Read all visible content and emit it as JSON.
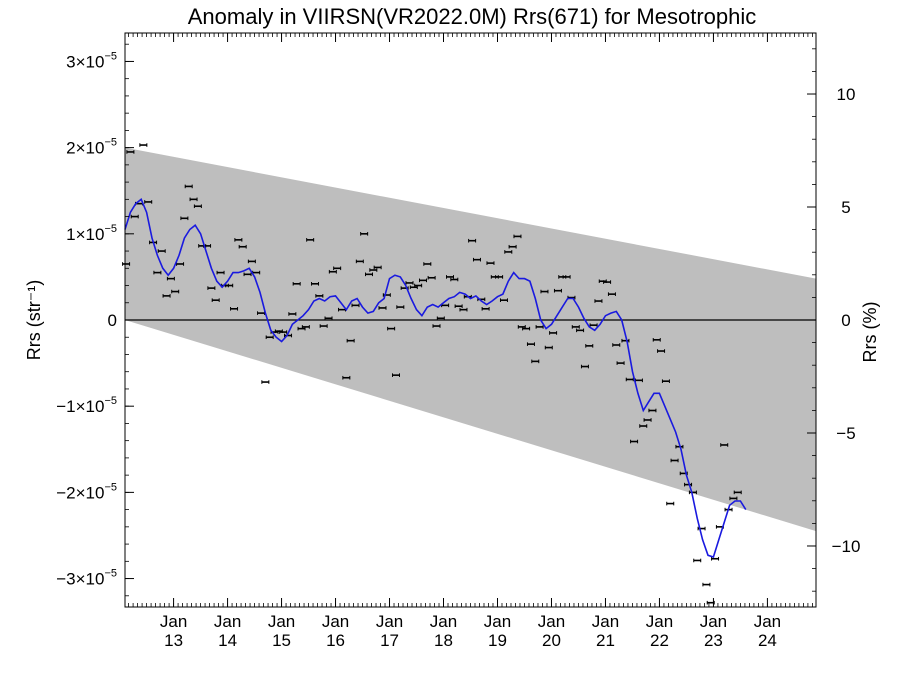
{
  "chart_data": {
    "type": "scatter",
    "title": "Anomaly in VIIRSN(VR2022.0M) Rrs(671) for Mesotrophic",
    "ylabel_left": "Rrs (str⁻¹)",
    "ylabel_right": "Rrs (%)",
    "xlim": [
      2012.1,
      2024.9
    ],
    "ylim": [
      -3.33e-05,
      3.33e-05
    ],
    "ylim_right": [
      -12.7,
      12.7
    ],
    "left_ticks": [
      {
        "value": 3e-05,
        "mant": "3",
        "exp": "−5"
      },
      {
        "value": 2e-05,
        "mant": "2",
        "exp": "−5"
      },
      {
        "value": 1e-05,
        "mant": "1",
        "exp": "−5"
      },
      {
        "value": 0,
        "plain": "0"
      },
      {
        "value": -1e-05,
        "mant": "−1",
        "exp": "−5"
      },
      {
        "value": -2e-05,
        "mant": "−2",
        "exp": "−5"
      },
      {
        "value": -3e-05,
        "mant": "−3",
        "exp": "−5"
      }
    ],
    "right_ticks": [
      {
        "value": 10,
        "label": "10"
      },
      {
        "value": 5,
        "label": "5"
      },
      {
        "value": 0,
        "label": "0"
      },
      {
        "value": -5,
        "label": "−5"
      },
      {
        "value": -10,
        "label": "−10"
      }
    ],
    "x_ticks": [
      {
        "value": 2013,
        "month": "Jan",
        "year": "13"
      },
      {
        "value": 2014,
        "month": "Jan",
        "year": "14"
      },
      {
        "value": 2015,
        "month": "Jan",
        "year": "15"
      },
      {
        "value": 2016,
        "month": "Jan",
        "year": "16"
      },
      {
        "value": 2017,
        "month": "Jan",
        "year": "17"
      },
      {
        "value": 2018,
        "month": "Jan",
        "year": "18"
      },
      {
        "value": 2019,
        "month": "Jan",
        "year": "19"
      },
      {
        "value": 2020,
        "month": "Jan",
        "year": "20"
      },
      {
        "value": 2021,
        "month": "Jan",
        "year": "21"
      },
      {
        "value": 2022,
        "month": "Jan",
        "year": "22"
      },
      {
        "value": 2023,
        "month": "Jan",
        "year": "23"
      },
      {
        "value": 2024,
        "month": "Jan",
        "year": "24"
      }
    ],
    "band": {
      "upper": [
        [
          2012.1,
          2e-05
        ],
        [
          2024.9,
          4.8e-06
        ]
      ],
      "lower": [
        [
          2012.1,
          0.0
        ],
        [
          2024.9,
          -2.45e-05
        ]
      ],
      "color": "#bebebe"
    },
    "zero_line": 0,
    "points": [
      [
        2012.12,
        6.5e-06
      ],
      [
        2012.2,
        1.95e-05
      ],
      [
        2012.28,
        1.2e-05
      ],
      [
        2012.36,
        1.35e-05
      ],
      [
        2012.44,
        2.03e-05
      ],
      [
        2012.53,
        1.37e-05
      ],
      [
        2012.62,
        9e-06
      ],
      [
        2012.7,
        5.5e-06
      ],
      [
        2012.78,
        8e-06
      ],
      [
        2012.87,
        2.8e-06
      ],
      [
        2012.95,
        4.8e-06
      ],
      [
        2013.03,
        3.3e-06
      ],
      [
        2013.12,
        6.5e-06
      ],
      [
        2013.2,
        1.18e-05
      ],
      [
        2013.28,
        1.55e-05
      ],
      [
        2013.37,
        1.4e-05
      ],
      [
        2013.45,
        1.32e-05
      ],
      [
        2013.53,
        8.6e-06
      ],
      [
        2013.62,
        8.6e-06
      ],
      [
        2013.7,
        3.7e-06
      ],
      [
        2013.78,
        2.3e-06
      ],
      [
        2013.87,
        5.5e-06
      ],
      [
        2013.95,
        4e-06
      ],
      [
        2014.03,
        4e-06
      ],
      [
        2014.12,
        1.3e-06
      ],
      [
        2014.2,
        9.3e-06
      ],
      [
        2014.28,
        8.5e-06
      ],
      [
        2014.37,
        5.3e-06
      ],
      [
        2014.45,
        6.8e-06
      ],
      [
        2014.53,
        5.5e-06
      ],
      [
        2014.62,
        8e-07
      ],
      [
        2014.7,
        -7.2e-06
      ],
      [
        2014.78,
        -2e-06
      ],
      [
        2014.87,
        -1.4e-06
      ],
      [
        2014.95,
        -1.3e-06
      ],
      [
        2015.03,
        -1.4e-06
      ],
      [
        2015.12,
        -1.8e-06
      ],
      [
        2015.2,
        7e-07
      ],
      [
        2015.28,
        4.2e-06
      ],
      [
        2015.37,
        -1e-06
      ],
      [
        2015.45,
        -8e-07
      ],
      [
        2015.53,
        9.3e-06
      ],
      [
        2015.62,
        4.2e-06
      ],
      [
        2015.7,
        2.8e-06
      ],
      [
        2015.78,
        -7e-07
      ],
      [
        2015.87,
        2e-07
      ],
      [
        2015.95,
        5.6e-06
      ],
      [
        2016.03,
        6e-06
      ],
      [
        2016.12,
        1.2e-06
      ],
      [
        2016.2,
        -6.7e-06
      ],
      [
        2016.28,
        -2.4e-06
      ],
      [
        2016.37,
        1.7e-06
      ],
      [
        2016.45,
        6.8e-06
      ],
      [
        2016.53,
        1e-05
      ],
      [
        2016.62,
        5.3e-06
      ],
      [
        2016.7,
        5.8e-06
      ],
      [
        2016.78,
        6.1e-06
      ],
      [
        2016.87,
        1.4e-06
      ],
      [
        2016.95,
        2.9e-06
      ],
      [
        2017.03,
        -1e-06
      ],
      [
        2017.12,
        -6.4e-06
      ],
      [
        2017.2,
        1.5e-06
      ],
      [
        2017.28,
        3.7e-06
      ],
      [
        2017.37,
        4.3e-06
      ],
      [
        2017.45,
        3.8e-06
      ],
      [
        2017.53,
        4e-06
      ],
      [
        2017.62,
        4.6e-06
      ],
      [
        2017.7,
        6.5e-06
      ],
      [
        2017.78,
        4.9e-06
      ],
      [
        2017.87,
        -7e-07
      ],
      [
        2017.95,
        2e-07
      ],
      [
        2018.03,
        1.7e-06
      ],
      [
        2018.12,
        5e-06
      ],
      [
        2018.2,
        4.7e-06
      ],
      [
        2018.28,
        1.6e-06
      ],
      [
        2018.37,
        1.2e-06
      ],
      [
        2018.45,
        2.7e-06
      ],
      [
        2018.53,
        9.2e-06
      ],
      [
        2018.62,
        7e-06
      ],
      [
        2018.7,
        2.4e-06
      ],
      [
        2018.78,
        1.3e-06
      ],
      [
        2018.87,
        6.6e-06
      ],
      [
        2018.95,
        5e-06
      ],
      [
        2019.03,
        5e-06
      ],
      [
        2019.12,
        2.3e-06
      ],
      [
        2019.2,
        7.9e-06
      ],
      [
        2019.28,
        8.5e-06
      ],
      [
        2019.37,
        9.7e-06
      ],
      [
        2019.45,
        -8e-07
      ],
      [
        2019.53,
        -1e-06
      ],
      [
        2019.62,
        -2.8e-06
      ],
      [
        2019.7,
        -4.8e-06
      ],
      [
        2019.78,
        -8e-07
      ],
      [
        2019.87,
        3.3e-06
      ],
      [
        2019.95,
        -3.2e-06
      ],
      [
        2020.03,
        -1.5e-06
      ],
      [
        2020.12,
        3.4e-06
      ],
      [
        2020.2,
        5e-06
      ],
      [
        2020.28,
        5e-06
      ],
      [
        2020.37,
        2.6e-06
      ],
      [
        2020.45,
        -8e-07
      ],
      [
        2020.53,
        -1.2e-06
      ],
      [
        2020.62,
        -5.4e-06
      ],
      [
        2020.7,
        -3e-06
      ],
      [
        2020.78,
        -6e-07
      ],
      [
        2020.87,
        2.2e-06
      ],
      [
        2020.95,
        4.5e-06
      ],
      [
        2021.03,
        4.4e-06
      ],
      [
        2021.12,
        3e-06
      ],
      [
        2021.2,
        -2.9e-06
      ],
      [
        2021.28,
        -5e-06
      ],
      [
        2021.37,
        -2.4e-06
      ],
      [
        2021.45,
        -6.9e-06
      ],
      [
        2021.53,
        -1.41e-05
      ],
      [
        2021.62,
        -7e-06
      ],
      [
        2021.7,
        -1.23e-05
      ],
      [
        2021.78,
        -1.16e-05
      ],
      [
        2021.87,
        -1.05e-05
      ],
      [
        2021.95,
        -2.3e-06
      ],
      [
        2022.03,
        -3.6e-06
      ],
      [
        2022.12,
        -7.1e-06
      ],
      [
        2022.2,
        -2.13e-05
      ],
      [
        2022.28,
        -1.63e-05
      ],
      [
        2022.37,
        -1.47e-05
      ],
      [
        2022.45,
        -1.78e-05
      ],
      [
        2022.53,
        -1.91e-05
      ],
      [
        2022.62,
        -2e-05
      ],
      [
        2022.7,
        -2.79e-05
      ],
      [
        2022.78,
        -2.42e-05
      ],
      [
        2022.87,
        -3.07e-05
      ],
      [
        2022.95,
        -3.28e-05
      ],
      [
        2023.03,
        -2.77e-05
      ],
      [
        2023.12,
        -2.4e-05
      ],
      [
        2023.2,
        -1.45e-05
      ],
      [
        2023.28,
        -2.2e-05
      ],
      [
        2023.37,
        -2.07e-05
      ],
      [
        2023.45,
        -2e-05
      ]
    ],
    "smooth": [
      [
        2012.1,
        1.05e-05
      ],
      [
        2012.2,
        1.25e-05
      ],
      [
        2012.3,
        1.35e-05
      ],
      [
        2012.4,
        1.4e-05
      ],
      [
        2012.5,
        1.25e-05
      ],
      [
        2012.6,
        9.5e-06
      ],
      [
        2012.7,
        7.5e-06
      ],
      [
        2012.8,
        6e-06
      ],
      [
        2012.9,
        5.2e-06
      ],
      [
        2013.0,
        6e-06
      ],
      [
        2013.1,
        7.5e-06
      ],
      [
        2013.2,
        9.5e-06
      ],
      [
        2013.3,
        1.05e-05
      ],
      [
        2013.4,
        1.1e-05
      ],
      [
        2013.5,
        1e-05
      ],
      [
        2013.6,
        8e-06
      ],
      [
        2013.7,
        6e-06
      ],
      [
        2013.8,
        4.5e-06
      ],
      [
        2013.9,
        3.8e-06
      ],
      [
        2014.0,
        4.5e-06
      ],
      [
        2014.1,
        5.5e-06
      ],
      [
        2014.2,
        5.5e-06
      ],
      [
        2014.3,
        5.7e-06
      ],
      [
        2014.4,
        6e-06
      ],
      [
        2014.5,
        5e-06
      ],
      [
        2014.6,
        3.2e-06
      ],
      [
        2014.7,
        8e-07
      ],
      [
        2014.8,
        -1.2e-06
      ],
      [
        2014.9,
        -2e-06
      ],
      [
        2015.0,
        -2.5e-06
      ],
      [
        2015.1,
        -1.8e-06
      ],
      [
        2015.2,
        -5e-07
      ],
      [
        2015.3,
        0.0
      ],
      [
        2015.4,
        5e-07
      ],
      [
        2015.5,
        1.2e-06
      ],
      [
        2015.6,
        2.2e-06
      ],
      [
        2015.7,
        2.5e-06
      ],
      [
        2015.8,
        2.2e-06
      ],
      [
        2015.9,
        2.7e-06
      ],
      [
        2016.0,
        2.8e-06
      ],
      [
        2016.1,
        2e-06
      ],
      [
        2016.2,
        1.2e-06
      ],
      [
        2016.3,
        2.2e-06
      ],
      [
        2016.4,
        2.5e-06
      ],
      [
        2016.5,
        1.5e-06
      ],
      [
        2016.6,
        8e-07
      ],
      [
        2016.7,
        1e-06
      ],
      [
        2016.8,
        2e-06
      ],
      [
        2016.9,
        2.5e-06
      ],
      [
        2017.0,
        4.8e-06
      ],
      [
        2017.1,
        5.2e-06
      ],
      [
        2017.2,
        5e-06
      ],
      [
        2017.3,
        4e-06
      ],
      [
        2017.4,
        2.5e-06
      ],
      [
        2017.5,
        1.2e-06
      ],
      [
        2017.6,
        5e-07
      ],
      [
        2017.7,
        1.5e-06
      ],
      [
        2017.8,
        1.8e-06
      ],
      [
        2017.9,
        1.5e-06
      ],
      [
        2018.0,
        2e-06
      ],
      [
        2018.1,
        2.5e-06
      ],
      [
        2018.2,
        2.7e-06
      ],
      [
        2018.3,
        3.2e-06
      ],
      [
        2018.4,
        3e-06
      ],
      [
        2018.5,
        2.5e-06
      ],
      [
        2018.6,
        2.8e-06
      ],
      [
        2018.7,
        2.2e-06
      ],
      [
        2018.8,
        1.8e-06
      ],
      [
        2018.9,
        2.2e-06
      ],
      [
        2019.0,
        2.7e-06
      ],
      [
        2019.1,
        3e-06
      ],
      [
        2019.2,
        4.5e-06
      ],
      [
        2019.3,
        5.5e-06
      ],
      [
        2019.4,
        4.8e-06
      ],
      [
        2019.5,
        4.8e-06
      ],
      [
        2019.6,
        4.5e-06
      ],
      [
        2019.7,
        2.5e-06
      ],
      [
        2019.8,
        0.0
      ],
      [
        2019.9,
        -1e-06
      ],
      [
        2020.0,
        -5e-07
      ],
      [
        2020.1,
        5e-07
      ],
      [
        2020.2,
        1.5e-06
      ],
      [
        2020.3,
        2.5e-06
      ],
      [
        2020.4,
        2.5e-06
      ],
      [
        2020.5,
        1.5e-06
      ],
      [
        2020.6,
        2e-07
      ],
      [
        2020.7,
        -8e-07
      ],
      [
        2020.8,
        -1.2e-06
      ],
      [
        2020.9,
        -5e-07
      ],
      [
        2021.0,
        5e-07
      ],
      [
        2021.1,
        8e-07
      ],
      [
        2021.2,
        1e-06
      ],
      [
        2021.3,
        0.0
      ],
      [
        2021.4,
        -2.5e-06
      ],
      [
        2021.5,
        -6e-06
      ],
      [
        2021.6,
        -8.5e-06
      ],
      [
        2021.7,
        -1.05e-05
      ],
      [
        2021.8,
        -9.5e-06
      ],
      [
        2021.9,
        -8.5e-06
      ],
      [
        2022.0,
        -8.5e-06
      ],
      [
        2022.1,
        -1e-05
      ],
      [
        2022.2,
        -1.15e-05
      ],
      [
        2022.3,
        -1.3e-05
      ],
      [
        2022.4,
        -1.5e-05
      ],
      [
        2022.5,
        -1.8e-05
      ],
      [
        2022.6,
        -2e-05
      ],
      [
        2022.7,
        -2.3e-05
      ],
      [
        2022.8,
        -2.55e-05
      ],
      [
        2022.9,
        -2.73e-05
      ],
      [
        2023.0,
        -2.75e-05
      ],
      [
        2023.1,
        -2.55e-05
      ],
      [
        2023.2,
        -2.35e-05
      ],
      [
        2023.3,
        -2.15e-05
      ],
      [
        2023.4,
        -2.1e-05
      ],
      [
        2023.5,
        -2.1e-05
      ],
      [
        2023.6,
        -2.2e-05
      ]
    ],
    "colors": {
      "band": "#bebebe",
      "smooth": "#1a1adf",
      "points": "#000000",
      "zero": "#000000"
    },
    "grid": false,
    "legend": "none"
  }
}
